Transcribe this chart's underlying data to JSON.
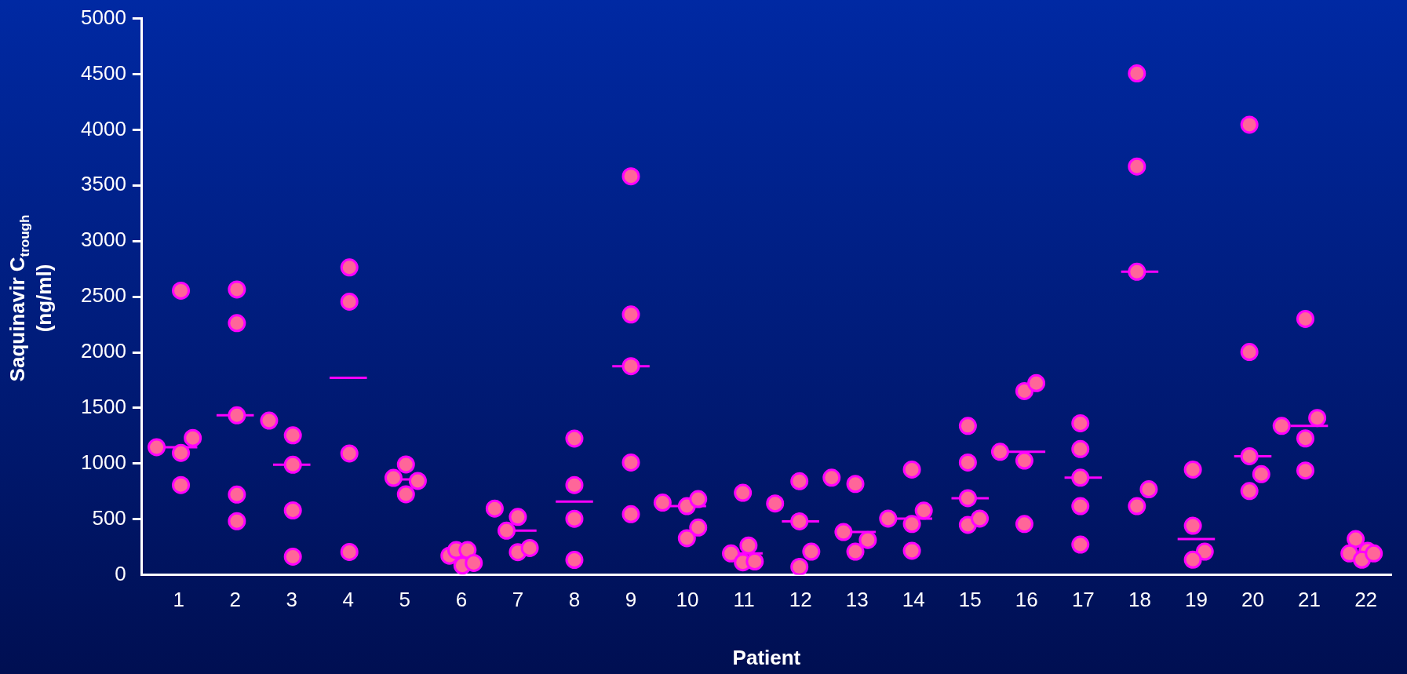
{
  "chart_data": {
    "type": "scatter",
    "xlabel": "Patient",
    "ylabel": "Saquinavir C$_{trough}$\n(ng/ml)",
    "xlim": [
      0.35,
      22.45
    ],
    "xticks": [
      1,
      2,
      3,
      4,
      5,
      6,
      7,
      8,
      9,
      10,
      11,
      12,
      13,
      14,
      15,
      16,
      17,
      18,
      19,
      20,
      21,
      22
    ],
    "ylim": [
      0,
      5000
    ],
    "yticks": [
      0,
      500,
      1000,
      1500,
      2000,
      2500,
      3000,
      3500,
      4000,
      4500,
      5000
    ],
    "grid": false,
    "marker": "circle",
    "series": [
      {
        "color": "#ff6699",
        "x": [
          0.61,
          1.04,
          1.04,
          1.25,
          1.04,
          2.03,
          2.03,
          2.03,
          2.03,
          2.03,
          2.6,
          3.02,
          3.02,
          3.02,
          3.02,
          4.02,
          4.02,
          4.02,
          4.02,
          4.8,
          5.02,
          5.23,
          5.02,
          5.79,
          5.91,
          6.11,
          6.02,
          6.22,
          6.59,
          7.0,
          6.8,
          7.0,
          7.21,
          8,
          8,
          8,
          8,
          9,
          9,
          9,
          9,
          9,
          9.56,
          9.99,
          10.19,
          10.19,
          9.99,
          10.77,
          11.08,
          10.98,
          11.19,
          10.98,
          11.55,
          11.98,
          11.98,
          12.19,
          11.98,
          12.55,
          12.97,
          12.76,
          13.19,
          12.97,
          13.55,
          13.97,
          13.97,
          14.18,
          13.97,
          14.96,
          14.96,
          14.96,
          14.96,
          15.17,
          15.53,
          15.96,
          15.96,
          16.17,
          15.96,
          16.95,
          16.95,
          16.95,
          16.95,
          16.95,
          17.95,
          17.95,
          17.95,
          17.95,
          18.16,
          18.94,
          18.94,
          19.15,
          18.94,
          19.94,
          19.94,
          19.94,
          20.15,
          19.94,
          20.93,
          20.51,
          21.14,
          20.93,
          20.93,
          21.82,
          21.71,
          22.03,
          21.93,
          22.14
        ],
        "values": [
          1147,
          1096,
          807,
          1230,
          2554,
          2565,
          2262,
          1434,
          721,
          482,
          1386,
          1254,
          989,
          579,
          163,
          2763,
          2455,
          1091,
          206,
          871,
          992,
          844,
          724,
          172,
          222,
          222,
          83,
          107,
          595,
          520,
          397,
          204,
          241,
          1225,
          807,
          504,
          134,
          3582,
          2340,
          1875,
          1010,
          545,
          649,
          617,
          681,
          425,
          329,
          192,
          264,
          112,
          120,
          737,
          641,
          841,
          481,
          208,
          72,
          873,
          817,
          385,
          313,
          208,
          505,
          946,
          457,
          577,
          216,
          1338,
          1010,
          689,
          449,
          505,
          1106,
          1026,
          1651,
          1723,
          457,
          1362,
          1130,
          873,
          617,
          272,
          4507,
          3670,
          2724,
          617,
          769,
          946,
          441,
          208,
          136,
          4046,
          2003,
          1066,
          905,
          753,
          2300,
          1338,
          1410,
          1226,
          937,
          321,
          192,
          216,
          136,
          192
        ]
      },
      {
        "type": "line",
        "marker": "none",
        "color": "#ff00ff",
        "x": [
          0.67,
          1.33
        ],
        "values": [
          1147,
          1147
        ]
      },
      {
        "type": "line",
        "marker": "none",
        "color": "#ff00ff",
        "x": [
          1.67,
          2.33
        ],
        "values": [
          1434,
          1434
        ]
      },
      {
        "type": "line",
        "marker": "none",
        "color": "#ff00ff",
        "x": [
          2.67,
          3.33
        ],
        "values": [
          989,
          989
        ]
      },
      {
        "type": "line",
        "marker": "none",
        "color": "#ff00ff",
        "x": [
          3.67,
          4.33
        ],
        "values": [
          1771,
          1771
        ]
      },
      {
        "type": "line",
        "marker": "none",
        "color": "#ff00ff",
        "x": [
          4.67,
          5.33
        ],
        "values": [
          858,
          858
        ]
      },
      {
        "type": "line",
        "marker": "none",
        "color": "#ff00ff",
        "x": [
          6.67,
          7.33
        ],
        "values": [
          397,
          397
        ]
      },
      {
        "type": "line",
        "marker": "none",
        "color": "#ff00ff",
        "x": [
          7.67,
          8.33
        ],
        "values": [
          659,
          659
        ]
      },
      {
        "type": "line",
        "marker": "none",
        "color": "#ff00ff",
        "x": [
          8.67,
          9.33
        ],
        "values": [
          1875,
          1875
        ]
      },
      {
        "type": "line",
        "marker": "none",
        "color": "#ff00ff",
        "x": [
          9.67,
          10.33
        ],
        "values": [
          617,
          617
        ]
      },
      {
        "type": "line",
        "marker": "none",
        "color": "#ff00ff",
        "x": [
          10.67,
          11.33
        ],
        "values": [
          192,
          192
        ]
      },
      {
        "type": "line",
        "marker": "none",
        "color": "#ff00ff",
        "x": [
          11.67,
          12.33
        ],
        "values": [
          481,
          481
        ]
      },
      {
        "type": "line",
        "marker": "none",
        "color": "#ff00ff",
        "x": [
          12.67,
          13.33
        ],
        "values": [
          385,
          385
        ]
      },
      {
        "type": "line",
        "marker": "none",
        "color": "#ff00ff",
        "x": [
          13.67,
          14.33
        ],
        "values": [
          505,
          505
        ]
      },
      {
        "type": "line",
        "marker": "none",
        "color": "#ff00ff",
        "x": [
          14.67,
          15.33
        ],
        "values": [
          689,
          689
        ]
      },
      {
        "type": "line",
        "marker": "none",
        "color": "#ff00ff",
        "x": [
          15.67,
          16.33
        ],
        "values": [
          1106,
          1106
        ]
      },
      {
        "type": "line",
        "marker": "none",
        "color": "#ff00ff",
        "x": [
          16.67,
          17.33
        ],
        "values": [
          873,
          873
        ]
      },
      {
        "type": "line",
        "marker": "none",
        "color": "#ff00ff",
        "x": [
          17.67,
          18.33
        ],
        "values": [
          2724,
          2724
        ]
      },
      {
        "type": "line",
        "marker": "none",
        "color": "#ff00ff",
        "x": [
          18.67,
          19.33
        ],
        "values": [
          321,
          321
        ]
      },
      {
        "type": "line",
        "marker": "none",
        "color": "#ff00ff",
        "x": [
          19.67,
          20.33
        ],
        "values": [
          1066,
          1066
        ]
      },
      {
        "type": "line",
        "marker": "none",
        "color": "#ff00ff",
        "x": [
          20.67,
          21.33
        ],
        "values": [
          1338,
          1338
        ]
      }
    ]
  }
}
